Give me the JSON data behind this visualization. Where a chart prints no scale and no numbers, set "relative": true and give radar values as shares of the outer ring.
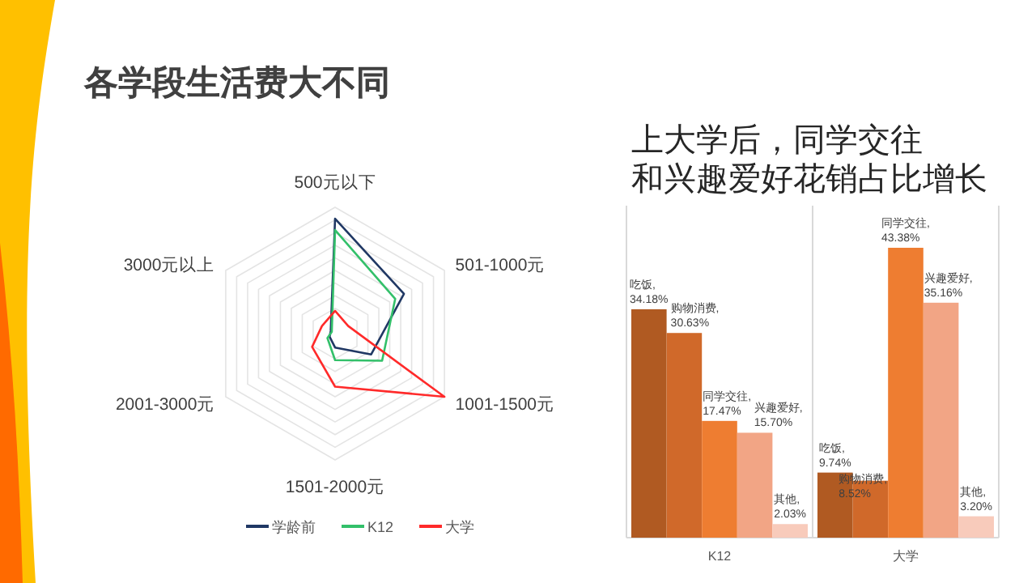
{
  "chart_data": [
    {
      "type": "radar",
      "title": "各学段生活费大不同",
      "relative": true,
      "legend": "bottom",
      "categories": [
        "500元以下",
        "501-1000元",
        "1001-1500元",
        "1501-2000元",
        "2001-3000元",
        "3000元以上"
      ],
      "series": [
        {
          "name": "学龄前",
          "color": "#203864",
          "values": [
            0.91,
            0.63,
            0.33,
            0.11,
            0.05,
            0.04
          ]
        },
        {
          "name": "K12",
          "color": "#33c06a",
          "values": [
            0.82,
            0.55,
            0.43,
            0.21,
            0.07,
            0.03
          ]
        },
        {
          "name": "大学",
          "color": "#ff2a2a",
          "values": [
            0.18,
            0.12,
            1.0,
            0.42,
            0.21,
            0.12
          ]
        }
      ]
    },
    {
      "type": "bar",
      "title": "上大学后，同学交往和兴趣爱好花销占比增长",
      "categories": [
        "K12",
        "大学"
      ],
      "series": [
        {
          "color": "#b05a22",
          "values": [
            34.18,
            9.74
          ],
          "value_labels": [
            "吃饭, 34.18%",
            "吃饭, 9.74%"
          ]
        },
        {
          "color": "#d0692a",
          "values": [
            30.63,
            8.52
          ],
          "value_labels": [
            "购物消费, 30.63%",
            "购物消费, 8.52%"
          ]
        },
        {
          "color": "#ee7d31",
          "values": [
            17.47,
            43.38
          ],
          "value_labels": [
            "同学交往, 17.47%",
            "同学交往, 43.38%"
          ]
        },
        {
          "color": "#f2a585",
          "values": [
            15.7,
            35.16
          ],
          "value_labels": [
            "兴趣爱好, 15.70%",
            "兴趣爱好, 35.16%"
          ]
        },
        {
          "color": "#f8cbbb",
          "values": [
            2.03,
            3.2
          ],
          "value_labels": [
            "其他, 2.03%",
            "其他, 3.20%"
          ]
        }
      ]
    }
  ]
}
